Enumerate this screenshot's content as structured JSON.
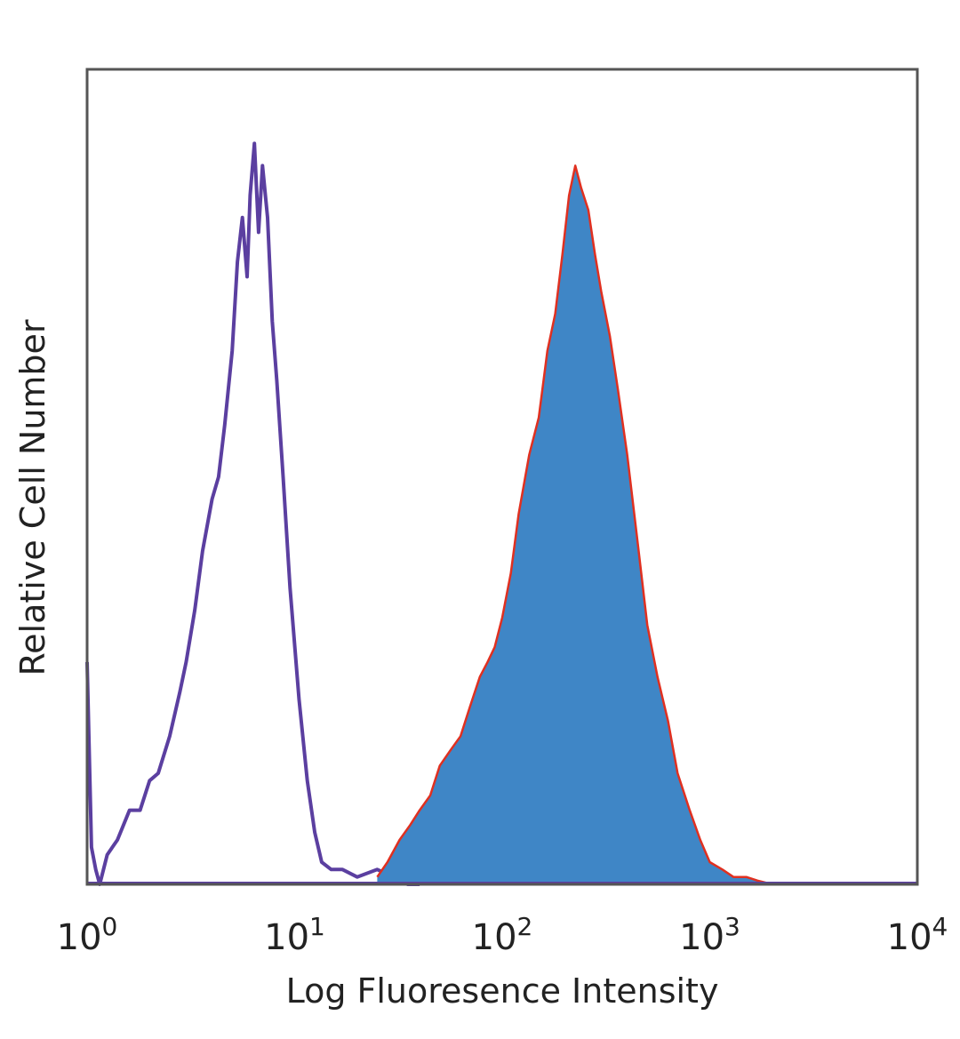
{
  "chart_data": {
    "type": "area",
    "title": "",
    "xlabel": "Log Fluoresence Intensity",
    "ylabel": "Relative Cell Number",
    "xscale": "log",
    "xlim": [
      1,
      10000
    ],
    "ylim": [
      0,
      1
    ],
    "grid": false,
    "legend": "none",
    "x_ticks": [
      {
        "value": 1,
        "base": "10",
        "exp": "0"
      },
      {
        "value": 10,
        "base": "10",
        "exp": "1"
      },
      {
        "value": 100,
        "base": "10",
        "exp": "2"
      },
      {
        "value": 1000,
        "base": "10",
        "exp": "3"
      },
      {
        "value": 10000,
        "base": "10",
        "exp": "4"
      }
    ],
    "series": [
      {
        "style": "outline",
        "color": "#5b3fa0",
        "x": [
          1.0,
          1.05,
          1.1,
          1.15,
          1.25,
          1.4,
          1.6,
          1.8,
          2.0,
          2.2,
          2.5,
          2.8,
          3.0,
          3.3,
          3.6,
          4.0,
          4.3,
          4.6,
          5.0,
          5.3,
          5.6,
          5.9,
          6.1,
          6.4,
          6.7,
          7.0,
          7.4,
          7.8,
          8.2,
          8.8,
          9.5,
          10.5,
          11.5,
          12.5,
          13.5,
          15.0,
          17.0,
          20.0,
          25.0,
          30.0,
          35.0,
          40.0
        ],
        "y": [
          0.3,
          0.05,
          0.02,
          0.0,
          0.04,
          0.06,
          0.1,
          0.1,
          0.14,
          0.15,
          0.2,
          0.26,
          0.3,
          0.37,
          0.45,
          0.52,
          0.55,
          0.62,
          0.72,
          0.84,
          0.9,
          0.82,
          0.93,
          1.0,
          0.88,
          0.97,
          0.9,
          0.76,
          0.68,
          0.55,
          0.4,
          0.25,
          0.14,
          0.07,
          0.03,
          0.02,
          0.02,
          0.01,
          0.02,
          0.01,
          0.0,
          0.0
        ]
      },
      {
        "style": "filled",
        "color": "#3f86c6",
        "edge_color": "#e03020",
        "x": [
          25,
          28,
          32,
          36,
          40,
          45,
          50,
          56,
          63,
          70,
          78,
          85,
          92,
          100,
          110,
          120,
          135,
          150,
          165,
          180,
          195,
          210,
          225,
          240,
          260,
          280,
          300,
          330,
          360,
          400,
          450,
          500,
          560,
          630,
          700,
          800,
          900,
          1000,
          1150,
          1300,
          1500,
          1700,
          2000
        ],
        "y": [
          0.01,
          0.03,
          0.06,
          0.08,
          0.1,
          0.12,
          0.16,
          0.18,
          0.2,
          0.24,
          0.28,
          0.3,
          0.32,
          0.36,
          0.42,
          0.5,
          0.58,
          0.63,
          0.72,
          0.77,
          0.85,
          0.93,
          0.97,
          0.94,
          0.91,
          0.85,
          0.8,
          0.74,
          0.67,
          0.58,
          0.46,
          0.35,
          0.28,
          0.22,
          0.15,
          0.1,
          0.06,
          0.03,
          0.02,
          0.01,
          0.01,
          0.005,
          0.0
        ]
      }
    ]
  }
}
